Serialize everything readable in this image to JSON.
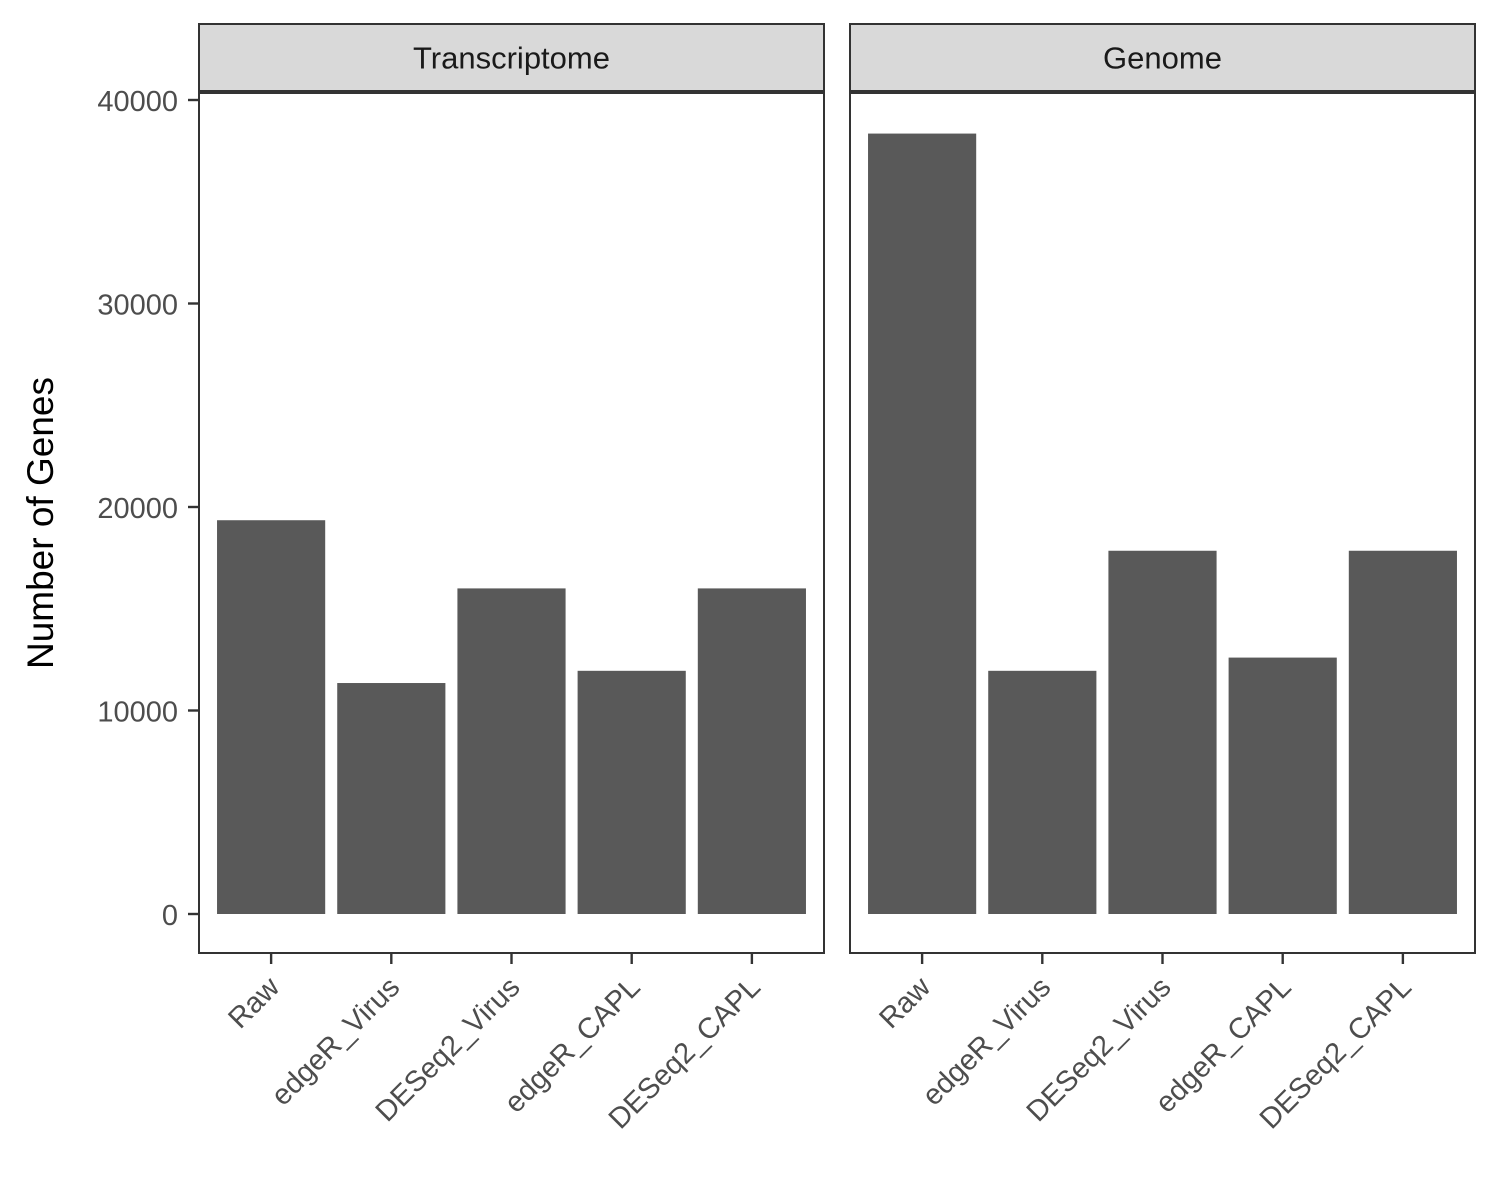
{
  "chart_data": {
    "type": "bar",
    "ylabel": "Number of Genes",
    "xlabel": "",
    "ylim": [
      0,
      40000
    ],
    "yticks": [
      0,
      10000,
      20000,
      30000,
      40000
    ],
    "ytick_labels": [
      "0",
      "10000",
      "20000",
      "30000",
      "40000"
    ],
    "categories": [
      "Raw",
      "edgeR_Virus",
      "DESeq2_Virus",
      "edgeR_CAPL",
      "DESeq2_CAPL"
    ],
    "bar_color": "#595959",
    "grid": false,
    "legend": "none",
    "facets": [
      {
        "title": "Transcriptome",
        "values": [
          19350,
          11350,
          16000,
          11950,
          16000
        ]
      },
      {
        "title": "Genome",
        "values": [
          38350,
          11950,
          17850,
          12600,
          17850
        ]
      }
    ]
  }
}
